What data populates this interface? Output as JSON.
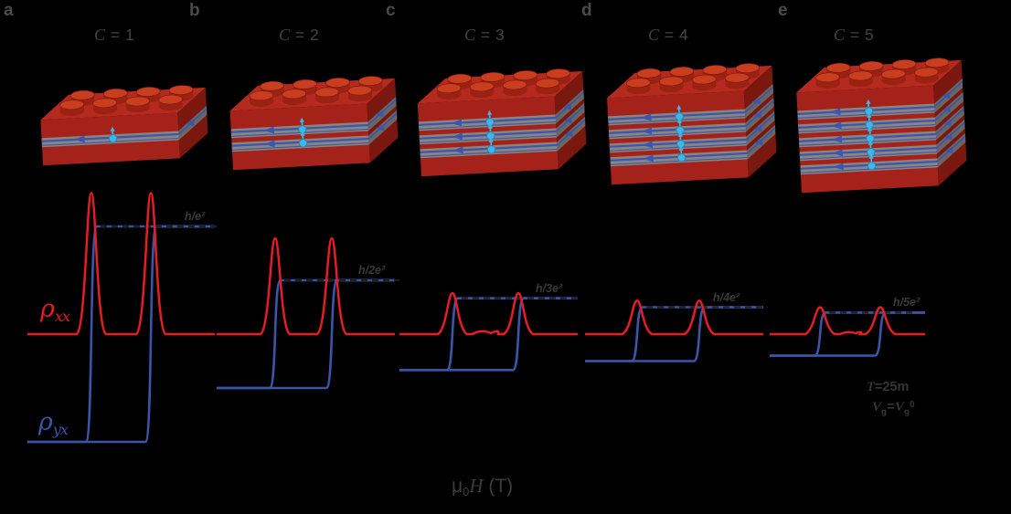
{
  "background": "#000000",
  "colors": {
    "bg": "#000000",
    "rho-xx": "#e81c24",
    "rho-yx": "#3a54a8",
    "dash-guide": "#1f1f1f",
    "text-letter": "#4a4a4a",
    "text-chern": "#434343",
    "text-plateau": "#3a3a3a",
    "text-ann": "#343434",
    "text-axis": "#3c3c3c",
    "brick-top": "#b42a1f",
    "brick-front": "#a5221a",
    "brick-side": "#7a170f",
    "gray-front": "#8a857d",
    "gray-side": "#6b6760",
    "edge-blue": "#3a55b2",
    "edge-blue-side": "#3c55a8",
    "spin-cyan": "#3fb6e8",
    "spin-cyan-dark": "#2a85bb",
    "stud": "#c83e1f",
    "stud-dark": "#9b2212",
    "stud-base": "#8e1d10"
  },
  "panels": [
    {
      "letter": "a",
      "chern_symbol": "C",
      "chern_rest": " = 1",
      "plateau_label": "h/e²",
      "layers": 1
    },
    {
      "letter": "b",
      "chern_symbol": "C",
      "chern_rest": " = 2",
      "plateau_label": "h/2e²",
      "layers": 2
    },
    {
      "letter": "c",
      "chern_symbol": "C",
      "chern_rest": " = 3",
      "plateau_label": "h/3e²",
      "layers": 3
    },
    {
      "letter": "d",
      "chern_symbol": "C",
      "chern_rest": " = 4",
      "plateau_label": "h/4e²",
      "layers": 4
    },
    {
      "letter": "e",
      "chern_symbol": "C",
      "chern_rest": " = 5",
      "plateau_label": "h/5e²",
      "layers": 5
    }
  ],
  "curve_labels": {
    "xx": {
      "rho": "ρ",
      "sub": "xx"
    },
    "yx": {
      "rho": "ρ",
      "sub": "yx"
    }
  },
  "annotations": {
    "temperature": {
      "t": "T",
      "rest": "=25m"
    },
    "gate": {
      "v1": "V",
      "sub1": "g",
      "eq": "=",
      "v2": "V",
      "sub2": "g",
      "sup": "0"
    }
  },
  "axis": {
    "mu": "μ",
    "sub": "0",
    "quantity": "H",
    "unit": " (T)"
  },
  "chart_data": {
    "type": "line",
    "title": "",
    "xlabel": "μ0H (T)",
    "x_ticks": [],
    "y_ticks": [],
    "grid": false,
    "legend_position": "labels on curves (ρxx red, ρyx blue)",
    "series": [
      {
        "name": "ρxx",
        "color": "#e81c24",
        "description": "longitudinal resistivity; sharp symmetric peaks at the two coercive fields, flat near zero elsewhere"
      },
      {
        "name": "ρyx",
        "color": "#3a54a8",
        "description": "Hall resistivity; square hysteresis loop switching between -h/Ce² and +h/Ce² at the coercive fields"
      }
    ],
    "panels": [
      {
        "panel": "a",
        "chern_number": 1,
        "plateau_label": "h/e²",
        "rho_yx_plateau_h_e2": 1.0,
        "rho_xx_peak_h_e2": 1.31,
        "coercive_field_fractions": [
          0.341,
          0.659
        ],
        "dashed_guide_at_plateau": true
      },
      {
        "panel": "b",
        "chern_number": 2,
        "plateau_label": "h/2e²",
        "rho_yx_plateau_h_e2": 0.5,
        "rho_xx_peak_h_e2": 0.89,
        "coercive_field_fractions": [
          0.328,
          0.646
        ],
        "dashed_guide_at_plateau": true
      },
      {
        "panel": "c",
        "chern_number": 3,
        "plateau_label": "h/3e²",
        "rho_yx_plateau_h_e2": 0.3333,
        "rho_xx_peak_h_e2": 0.38,
        "coercive_field_fractions": [
          0.297,
          0.667
        ],
        "dashed_guide_at_plateau": true,
        "baseline_bump_h_e2": 0.05
      },
      {
        "panel": "d",
        "chern_number": 4,
        "plateau_label": "h/4e²",
        "rho_yx_plateau_h_e2": 0.25,
        "rho_xx_peak_h_e2": 0.31,
        "coercive_field_fractions": [
          0.292,
          0.641
        ],
        "dashed_guide_at_plateau": true
      },
      {
        "panel": "e",
        "chern_number": 5,
        "plateau_label": "h/5e²",
        "rho_yx_plateau_h_e2": 0.2,
        "rho_xx_peak_h_e2": 0.25,
        "coercive_field_fractions": [
          0.324,
          0.712
        ],
        "dashed_guide_at_plateau": true,
        "baseline_bump_h_e2": 0.034
      }
    ],
    "notes": "Five-panel figure: magnetization hysteresis of Chern insulator multilayers; ρyx quantized at ±h/Ce², ρxx peaks at coercive fields decrease with C."
  }
}
